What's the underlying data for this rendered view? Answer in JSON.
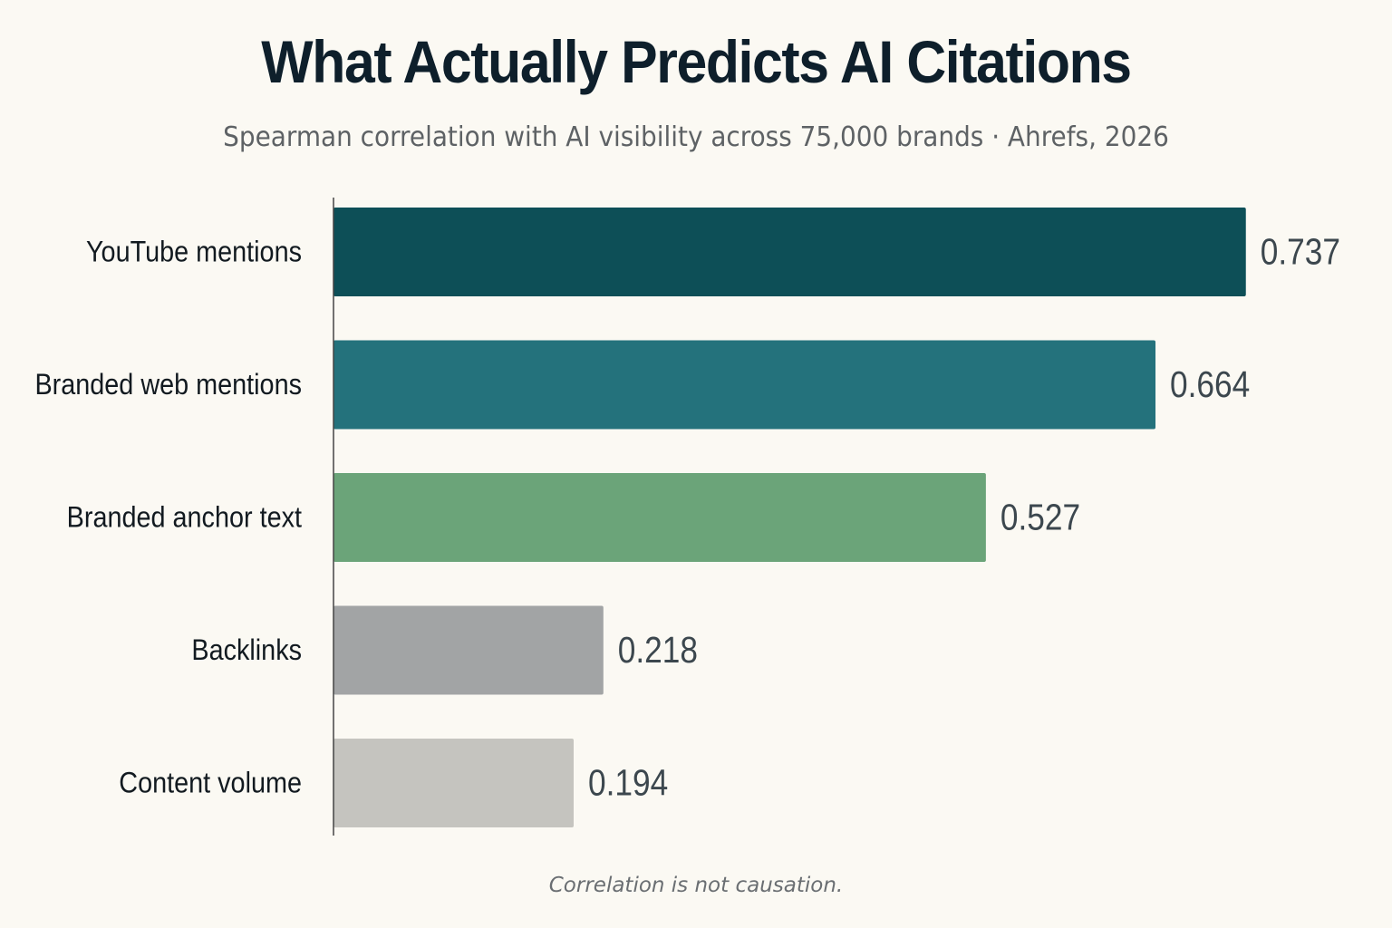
{
  "chart_data": {
    "type": "bar",
    "orientation": "horizontal",
    "title": "What Actually Predicts AI Citations",
    "subtitle": "Spearman correlation with AI visibility across 75,000 brands · Ahrefs, 2026",
    "categories": [
      "YouTube mentions",
      "Branded web mentions",
      "Branded anchor text",
      "Backlinks",
      "Content volume"
    ],
    "values": [
      0.737,
      0.664,
      0.527,
      0.218,
      0.194
    ],
    "value_labels": [
      "0.737",
      "0.664",
      "0.527",
      "0.218",
      "0.194"
    ],
    "colors": [
      "#0d4f57",
      "#24727c",
      "#6ba479",
      "#a2a4a5",
      "#c5c4bf"
    ],
    "xlim": [
      0,
      0.75
    ],
    "grid": false,
    "axis_line_color": "#444444",
    "value_label_color": "#3c474e",
    "category_label_color": "#121a20",
    "footnote": "Correlation is not causation."
  }
}
